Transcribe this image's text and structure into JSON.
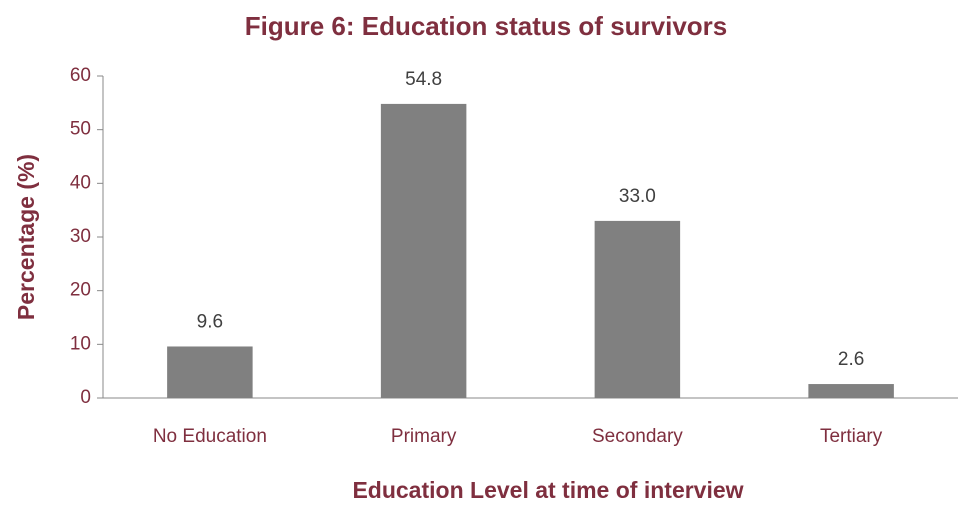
{
  "chart_data": {
    "type": "bar",
    "title": "Figure 6: Education status of survivors",
    "x_label": "Education Level at time of interview",
    "y_label": "Percentage (%)",
    "categories": [
      "No Education",
      "Primary",
      "Secondary",
      "Tertiary"
    ],
    "values": [
      9.6,
      54.8,
      33,
      2.6
    ],
    "value_labels": [
      "9.6",
      "54.8",
      "33.0",
      "2.6"
    ],
    "color": "#808080",
    "ylim": [
      0,
      60
    ],
    "yticks": [
      0,
      10,
      20,
      30,
      40,
      50,
      60
    ],
    "grid": false
  }
}
